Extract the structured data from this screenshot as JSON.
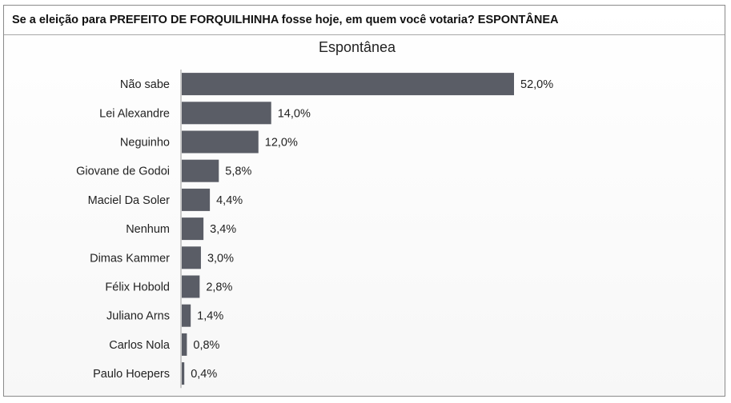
{
  "question": "Se a eleição para PREFEITO DE FORQUILHINHA fosse hoje, em quem você votaria? ESPONTÂNEA",
  "colors": {
    "bar": "#5a5d66",
    "axis": "#9a9a9a"
  },
  "chart_data": {
    "type": "bar",
    "orientation": "horizontal",
    "title": "Espontânea",
    "categories": [
      "Não sabe",
      "Lei Alexandre",
      "Neguinho",
      "Giovane de Godoi",
      "Maciel Da Soler",
      "Nenhum",
      "Dimas Kammer",
      "Félix Hobold",
      "Juliano Arns",
      "Carlos Nola",
      "Paulo Hoepers"
    ],
    "values": [
      52.0,
      14.0,
      12.0,
      5.8,
      4.4,
      3.4,
      3.0,
      2.8,
      1.4,
      0.8,
      0.4
    ],
    "value_labels": [
      "52,0%",
      "14,0%",
      "12,0%",
      "5,8%",
      "4,4%",
      "3,4%",
      "3,0%",
      "2,8%",
      "1,4%",
      "0,8%",
      "0,4%"
    ],
    "xlim": [
      0,
      52.0
    ],
    "grid": false,
    "legend": "none"
  }
}
